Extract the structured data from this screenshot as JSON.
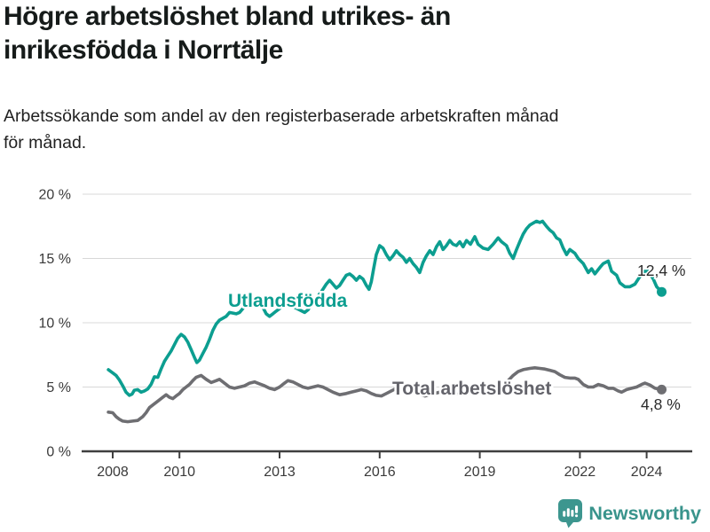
{
  "header": {
    "title_line1": "Högre arbetslöshet bland utrikes- än",
    "title_line2": "inrikesfödda i Norrtälje",
    "subtitle_line1": "Arbetssökande som andel av den registerbaserade arbetskraften månad",
    "subtitle_line2": "för månad."
  },
  "branding": {
    "name": "Newsworthy",
    "icon": "speech-bubble-bar-chart",
    "color": "#39948c"
  },
  "colors": {
    "foreign_series": "#0c9e90",
    "total_series": "#6e6e72",
    "total_label": "#64646b",
    "grid": "#d8d8d8",
    "axis": "#3f3f3f",
    "tick_text": "#3a3a3a",
    "annotation": "#2b2b2b"
  },
  "chart_data": {
    "type": "line",
    "title": "Högre arbetslöshet bland utrikes- än inrikesfödda i Norrtälje",
    "subtitle": "Arbetssökande som andel av den registerbaserade arbetskraften månad för månad.",
    "unit": "percent of registered labour force, monthly",
    "grid": "horizontal",
    "legend_position": "inline-labels",
    "x_axis": {
      "ticks": [
        2008,
        2010,
        2013,
        2016,
        2019,
        2022,
        2024
      ],
      "labels": [
        "2008",
        "2010",
        "2013",
        "2016",
        "2019",
        "2022",
        "2024"
      ],
      "range_years": [
        2007.9,
        2024.5
      ]
    },
    "y_axis": {
      "ticks": [
        0,
        5,
        10,
        15,
        20
      ],
      "labels": [
        "0 %",
        "5 %",
        "10 %",
        "15 %",
        "20 %"
      ],
      "range": [
        0,
        20
      ]
    },
    "series": [
      {
        "name": "Utlandsfödda",
        "color": "#0c9e90",
        "end_value": 12.4,
        "end_label": "12,4 %",
        "points": [
          [
            2007.87,
            6.35
          ],
          [
            2008.0,
            6.1
          ],
          [
            2008.1,
            5.9
          ],
          [
            2008.2,
            5.55
          ],
          [
            2008.3,
            5.1
          ],
          [
            2008.4,
            4.6
          ],
          [
            2008.5,
            4.35
          ],
          [
            2008.58,
            4.45
          ],
          [
            2008.65,
            4.75
          ],
          [
            2008.75,
            4.8
          ],
          [
            2008.85,
            4.6
          ],
          [
            2008.95,
            4.7
          ],
          [
            2009.05,
            4.85
          ],
          [
            2009.15,
            5.2
          ],
          [
            2009.25,
            5.8
          ],
          [
            2009.35,
            5.75
          ],
          [
            2009.45,
            6.4
          ],
          [
            2009.55,
            7.0
          ],
          [
            2009.65,
            7.4
          ],
          [
            2009.75,
            7.8
          ],
          [
            2009.85,
            8.3
          ],
          [
            2009.95,
            8.8
          ],
          [
            2010.05,
            9.1
          ],
          [
            2010.15,
            8.9
          ],
          [
            2010.25,
            8.5
          ],
          [
            2010.35,
            7.9
          ],
          [
            2010.45,
            7.3
          ],
          [
            2010.52,
            6.9
          ],
          [
            2010.6,
            7.1
          ],
          [
            2010.7,
            7.6
          ],
          [
            2010.8,
            8.1
          ],
          [
            2010.9,
            8.7
          ],
          [
            2011.0,
            9.4
          ],
          [
            2011.1,
            9.9
          ],
          [
            2011.2,
            10.2
          ],
          [
            2011.3,
            10.35
          ],
          [
            2011.4,
            10.5
          ],
          [
            2011.5,
            10.8
          ],
          [
            2011.6,
            10.75
          ],
          [
            2011.7,
            10.7
          ],
          [
            2011.8,
            10.8
          ],
          [
            2011.9,
            11.1
          ],
          [
            2012.0,
            11.5
          ],
          [
            2012.1,
            11.7
          ],
          [
            2012.2,
            11.9
          ],
          [
            2012.3,
            12.0
          ],
          [
            2012.4,
            11.7
          ],
          [
            2012.5,
            11.2
          ],
          [
            2012.6,
            10.7
          ],
          [
            2012.7,
            10.5
          ],
          [
            2012.8,
            10.7
          ],
          [
            2012.9,
            10.9
          ],
          [
            2013.0,
            11.1
          ],
          [
            2013.15,
            11.4
          ],
          [
            2013.3,
            11.5
          ],
          [
            2013.45,
            11.2
          ],
          [
            2013.6,
            11.0
          ],
          [
            2013.75,
            10.8
          ],
          [
            2013.85,
            11.0
          ],
          [
            2013.95,
            11.4
          ],
          [
            2014.1,
            11.9
          ],
          [
            2014.25,
            12.4
          ],
          [
            2014.4,
            13.0
          ],
          [
            2014.5,
            13.3
          ],
          [
            2014.6,
            13.0
          ],
          [
            2014.7,
            12.7
          ],
          [
            2014.8,
            12.9
          ],
          [
            2014.9,
            13.3
          ],
          [
            2015.0,
            13.7
          ],
          [
            2015.1,
            13.8
          ],
          [
            2015.2,
            13.6
          ],
          [
            2015.3,
            13.3
          ],
          [
            2015.4,
            13.6
          ],
          [
            2015.5,
            13.4
          ],
          [
            2015.6,
            12.9
          ],
          [
            2015.68,
            12.6
          ],
          [
            2015.75,
            13.2
          ],
          [
            2015.82,
            14.2
          ],
          [
            2015.9,
            15.3
          ],
          [
            2016.0,
            16.0
          ],
          [
            2016.1,
            15.8
          ],
          [
            2016.2,
            15.3
          ],
          [
            2016.3,
            14.9
          ],
          [
            2016.4,
            15.2
          ],
          [
            2016.5,
            15.6
          ],
          [
            2016.6,
            15.3
          ],
          [
            2016.7,
            15.1
          ],
          [
            2016.8,
            14.7
          ],
          [
            2016.9,
            15.0
          ],
          [
            2017.0,
            14.6
          ],
          [
            2017.1,
            14.3
          ],
          [
            2017.2,
            13.9
          ],
          [
            2017.3,
            14.7
          ],
          [
            2017.4,
            15.2
          ],
          [
            2017.5,
            15.6
          ],
          [
            2017.6,
            15.3
          ],
          [
            2017.7,
            15.9
          ],
          [
            2017.8,
            16.3
          ],
          [
            2017.9,
            15.7
          ],
          [
            2018.0,
            16.0
          ],
          [
            2018.1,
            16.4
          ],
          [
            2018.2,
            16.1
          ],
          [
            2018.3,
            16.0
          ],
          [
            2018.4,
            16.3
          ],
          [
            2018.5,
            15.9
          ],
          [
            2018.6,
            16.4
          ],
          [
            2018.72,
            16.1
          ],
          [
            2018.85,
            16.7
          ],
          [
            2018.95,
            16.1
          ],
          [
            2019.1,
            15.8
          ],
          [
            2019.25,
            15.7
          ],
          [
            2019.4,
            16.1
          ],
          [
            2019.55,
            16.6
          ],
          [
            2019.65,
            16.3
          ],
          [
            2019.8,
            16.0
          ],
          [
            2019.9,
            15.4
          ],
          [
            2020.0,
            15.0
          ],
          [
            2020.1,
            15.7
          ],
          [
            2020.2,
            16.3
          ],
          [
            2020.3,
            16.9
          ],
          [
            2020.4,
            17.3
          ],
          [
            2020.5,
            17.6
          ],
          [
            2020.6,
            17.75
          ],
          [
            2020.7,
            17.9
          ],
          [
            2020.8,
            17.8
          ],
          [
            2020.88,
            17.9
          ],
          [
            2021.0,
            17.5
          ],
          [
            2021.1,
            17.2
          ],
          [
            2021.2,
            17.0
          ],
          [
            2021.3,
            16.6
          ],
          [
            2021.4,
            16.45
          ],
          [
            2021.5,
            15.8
          ],
          [
            2021.6,
            15.3
          ],
          [
            2021.7,
            15.7
          ],
          [
            2021.85,
            15.4
          ],
          [
            2021.95,
            15.0
          ],
          [
            2022.1,
            14.6
          ],
          [
            2022.25,
            13.9
          ],
          [
            2022.35,
            14.2
          ],
          [
            2022.45,
            13.8
          ],
          [
            2022.6,
            14.3
          ],
          [
            2022.7,
            14.6
          ],
          [
            2022.85,
            14.8
          ],
          [
            2022.95,
            14.0
          ],
          [
            2023.1,
            13.7
          ],
          [
            2023.2,
            13.1
          ],
          [
            2023.35,
            12.8
          ],
          [
            2023.5,
            12.8
          ],
          [
            2023.65,
            13.0
          ],
          [
            2023.8,
            13.6
          ],
          [
            2023.92,
            14.0
          ],
          [
            2024.05,
            14.0
          ],
          [
            2024.2,
            13.4
          ],
          [
            2024.3,
            12.8
          ],
          [
            2024.45,
            12.4
          ]
        ]
      },
      {
        "name": "Total arbetslöshet",
        "color": "#6e6e72",
        "end_value": 4.8,
        "end_label": "4,8 %",
        "points": [
          [
            2007.87,
            3.05
          ],
          [
            2008.0,
            3.0
          ],
          [
            2008.1,
            2.7
          ],
          [
            2008.2,
            2.5
          ],
          [
            2008.3,
            2.35
          ],
          [
            2008.45,
            2.3
          ],
          [
            2008.6,
            2.35
          ],
          [
            2008.75,
            2.4
          ],
          [
            2008.9,
            2.7
          ],
          [
            2009.0,
            3.0
          ],
          [
            2009.1,
            3.4
          ],
          [
            2009.2,
            3.6
          ],
          [
            2009.35,
            3.9
          ],
          [
            2009.5,
            4.2
          ],
          [
            2009.6,
            4.4
          ],
          [
            2009.7,
            4.2
          ],
          [
            2009.8,
            4.1
          ],
          [
            2009.9,
            4.3
          ],
          [
            2010.0,
            4.5
          ],
          [
            2010.1,
            4.8
          ],
          [
            2010.2,
            5.0
          ],
          [
            2010.3,
            5.2
          ],
          [
            2010.4,
            5.5
          ],
          [
            2010.5,
            5.75
          ],
          [
            2010.65,
            5.9
          ],
          [
            2010.8,
            5.6
          ],
          [
            2010.95,
            5.35
          ],
          [
            2011.1,
            5.5
          ],
          [
            2011.2,
            5.6
          ],
          [
            2011.3,
            5.4
          ],
          [
            2011.4,
            5.2
          ],
          [
            2011.5,
            5.0
          ],
          [
            2011.65,
            4.9
          ],
          [
            2011.8,
            5.0
          ],
          [
            2011.95,
            5.1
          ],
          [
            2012.1,
            5.3
          ],
          [
            2012.25,
            5.4
          ],
          [
            2012.4,
            5.25
          ],
          [
            2012.55,
            5.1
          ],
          [
            2012.7,
            4.9
          ],
          [
            2012.85,
            4.8
          ],
          [
            2013.0,
            5.0
          ],
          [
            2013.15,
            5.3
          ],
          [
            2013.25,
            5.5
          ],
          [
            2013.4,
            5.4
          ],
          [
            2013.55,
            5.2
          ],
          [
            2013.7,
            5.0
          ],
          [
            2013.85,
            4.9
          ],
          [
            2014.0,
            5.0
          ],
          [
            2014.15,
            5.1
          ],
          [
            2014.3,
            5.0
          ],
          [
            2014.45,
            4.8
          ],
          [
            2014.6,
            4.6
          ],
          [
            2014.8,
            4.4
          ],
          [
            2015.0,
            4.5
          ],
          [
            2015.15,
            4.6
          ],
          [
            2015.3,
            4.7
          ],
          [
            2015.45,
            4.8
          ],
          [
            2015.6,
            4.7
          ],
          [
            2015.75,
            4.5
          ],
          [
            2015.9,
            4.35
          ],
          [
            2016.05,
            4.3
          ],
          [
            2016.2,
            4.5
          ],
          [
            2016.35,
            4.7
          ],
          [
            2016.5,
            4.9
          ],
          [
            2016.65,
            5.0
          ],
          [
            2016.8,
            5.0
          ],
          [
            2016.95,
            4.85
          ],
          [
            2017.1,
            4.6
          ],
          [
            2017.25,
            4.4
          ],
          [
            2017.35,
            4.3
          ],
          [
            2017.5,
            4.4
          ],
          [
            2017.65,
            4.5
          ],
          [
            2017.8,
            4.6
          ],
          [
            2018.0,
            4.6
          ],
          [
            2018.2,
            4.5
          ],
          [
            2018.4,
            4.4
          ],
          [
            2018.6,
            4.5
          ],
          [
            2018.8,
            4.6
          ],
          [
            2019.0,
            4.6
          ],
          [
            2019.2,
            4.5
          ],
          [
            2019.4,
            4.6
          ],
          [
            2019.55,
            4.8
          ],
          [
            2019.7,
            5.1
          ],
          [
            2019.85,
            5.5
          ],
          [
            2020.0,
            5.9
          ],
          [
            2020.15,
            6.2
          ],
          [
            2020.3,
            6.35
          ],
          [
            2020.5,
            6.45
          ],
          [
            2020.65,
            6.5
          ],
          [
            2020.8,
            6.45
          ],
          [
            2020.95,
            6.4
          ],
          [
            2021.1,
            6.3
          ],
          [
            2021.25,
            6.2
          ],
          [
            2021.4,
            5.95
          ],
          [
            2021.55,
            5.75
          ],
          [
            2021.7,
            5.7
          ],
          [
            2021.85,
            5.7
          ],
          [
            2021.95,
            5.6
          ],
          [
            2022.1,
            5.2
          ],
          [
            2022.25,
            5.0
          ],
          [
            2022.4,
            5.0
          ],
          [
            2022.55,
            5.2
          ],
          [
            2022.7,
            5.1
          ],
          [
            2022.85,
            4.9
          ],
          [
            2023.0,
            4.9
          ],
          [
            2023.15,
            4.7
          ],
          [
            2023.25,
            4.6
          ],
          [
            2023.4,
            4.8
          ],
          [
            2023.55,
            4.9
          ],
          [
            2023.7,
            5.0
          ],
          [
            2023.85,
            5.2
          ],
          [
            2023.95,
            5.3
          ],
          [
            2024.1,
            5.15
          ],
          [
            2024.25,
            4.9
          ],
          [
            2024.45,
            4.8
          ]
        ]
      }
    ]
  }
}
